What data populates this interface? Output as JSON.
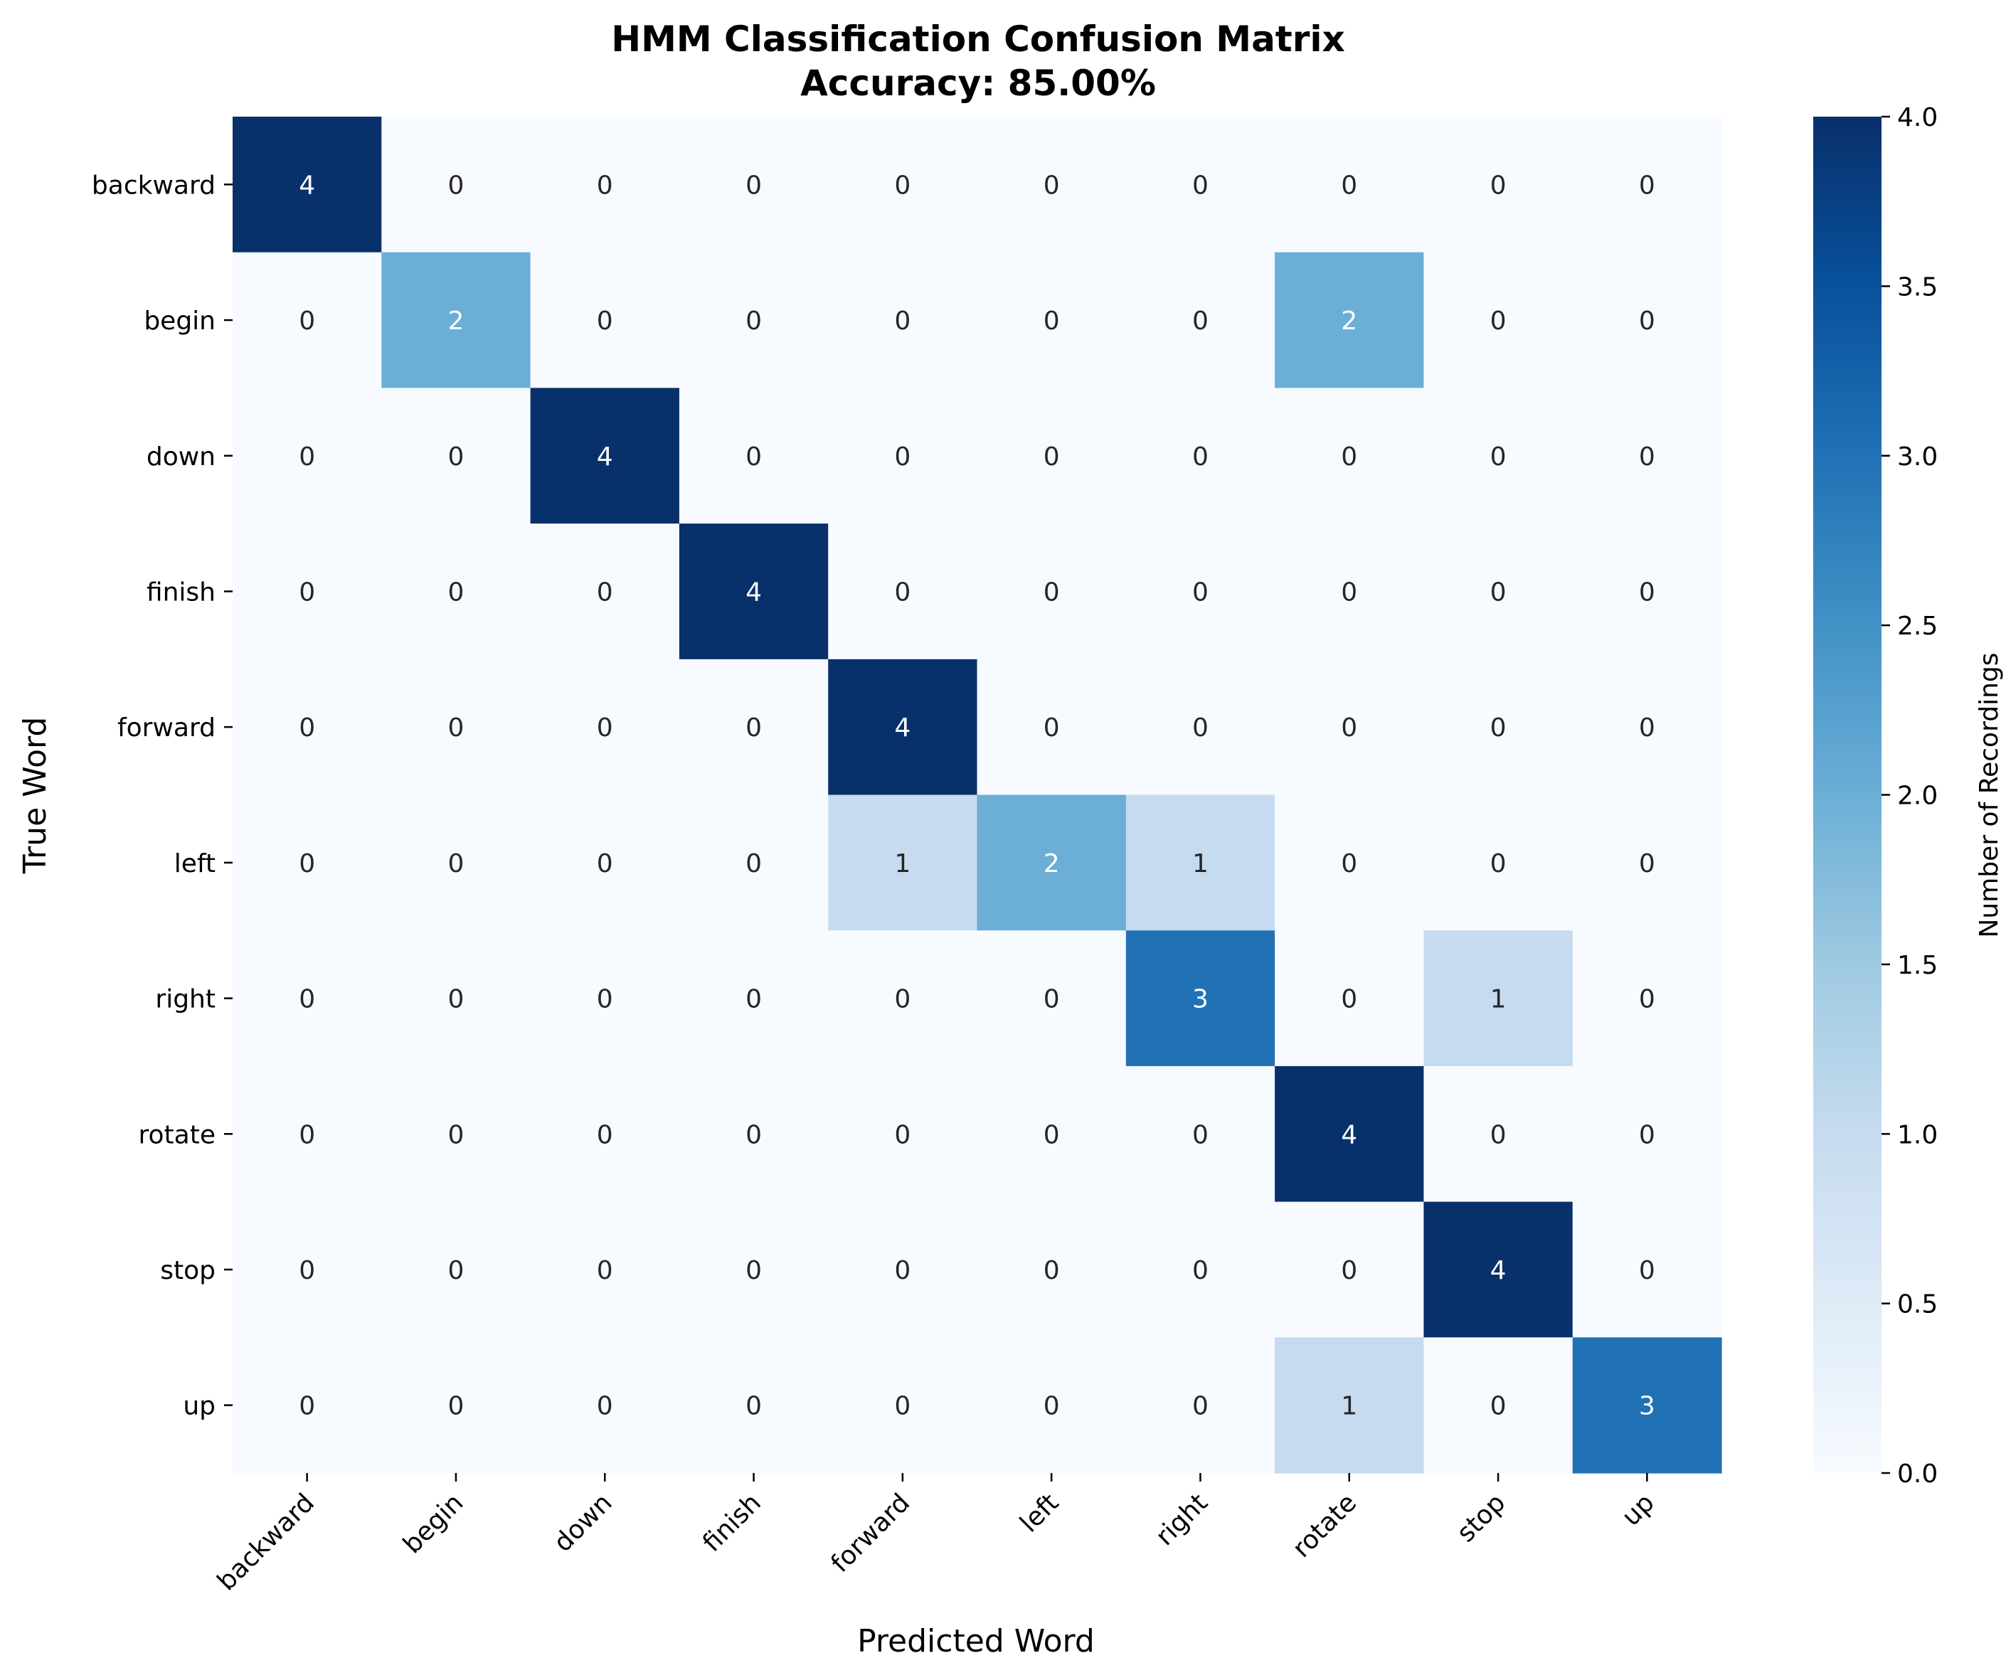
{
  "chart_data": {
    "type": "heatmap",
    "title": "HMM Classification Confusion Matrix",
    "subtitle": "Accuracy: 85.00%",
    "xlabel": "Predicted Word",
    "ylabel": "True Word",
    "x_categories": [
      "backward",
      "begin",
      "down",
      "finish",
      "forward",
      "left",
      "right",
      "rotate",
      "stop",
      "up"
    ],
    "y_categories": [
      "backward",
      "begin",
      "down",
      "finish",
      "forward",
      "left",
      "right",
      "rotate",
      "stop",
      "up"
    ],
    "values": [
      [
        4,
        0,
        0,
        0,
        0,
        0,
        0,
        0,
        0,
        0
      ],
      [
        0,
        2,
        0,
        0,
        0,
        0,
        0,
        2,
        0,
        0
      ],
      [
        0,
        0,
        4,
        0,
        0,
        0,
        0,
        0,
        0,
        0
      ],
      [
        0,
        0,
        0,
        4,
        0,
        0,
        0,
        0,
        0,
        0
      ],
      [
        0,
        0,
        0,
        0,
        4,
        0,
        0,
        0,
        0,
        0
      ],
      [
        0,
        0,
        0,
        0,
        1,
        2,
        1,
        0,
        0,
        0
      ],
      [
        0,
        0,
        0,
        0,
        0,
        0,
        3,
        0,
        1,
        0
      ],
      [
        0,
        0,
        0,
        0,
        0,
        0,
        0,
        4,
        0,
        0
      ],
      [
        0,
        0,
        0,
        0,
        0,
        0,
        0,
        0,
        4,
        0
      ],
      [
        0,
        0,
        0,
        0,
        0,
        0,
        0,
        1,
        0,
        3
      ]
    ],
    "colorbar": {
      "label": "Number of Recordings",
      "range": [
        0.0,
        4.0
      ],
      "ticks": [
        "0.0",
        "0.5",
        "1.0",
        "1.5",
        "2.0",
        "2.5",
        "3.0",
        "3.5",
        "4.0"
      ],
      "tick_values": [
        0.0,
        0.5,
        1.0,
        1.5,
        2.0,
        2.5,
        3.0,
        3.5,
        4.0
      ]
    },
    "colormap": "Blues",
    "colors": {
      "low": "#f7fbff",
      "high": "#08306b"
    },
    "grid": false
  }
}
